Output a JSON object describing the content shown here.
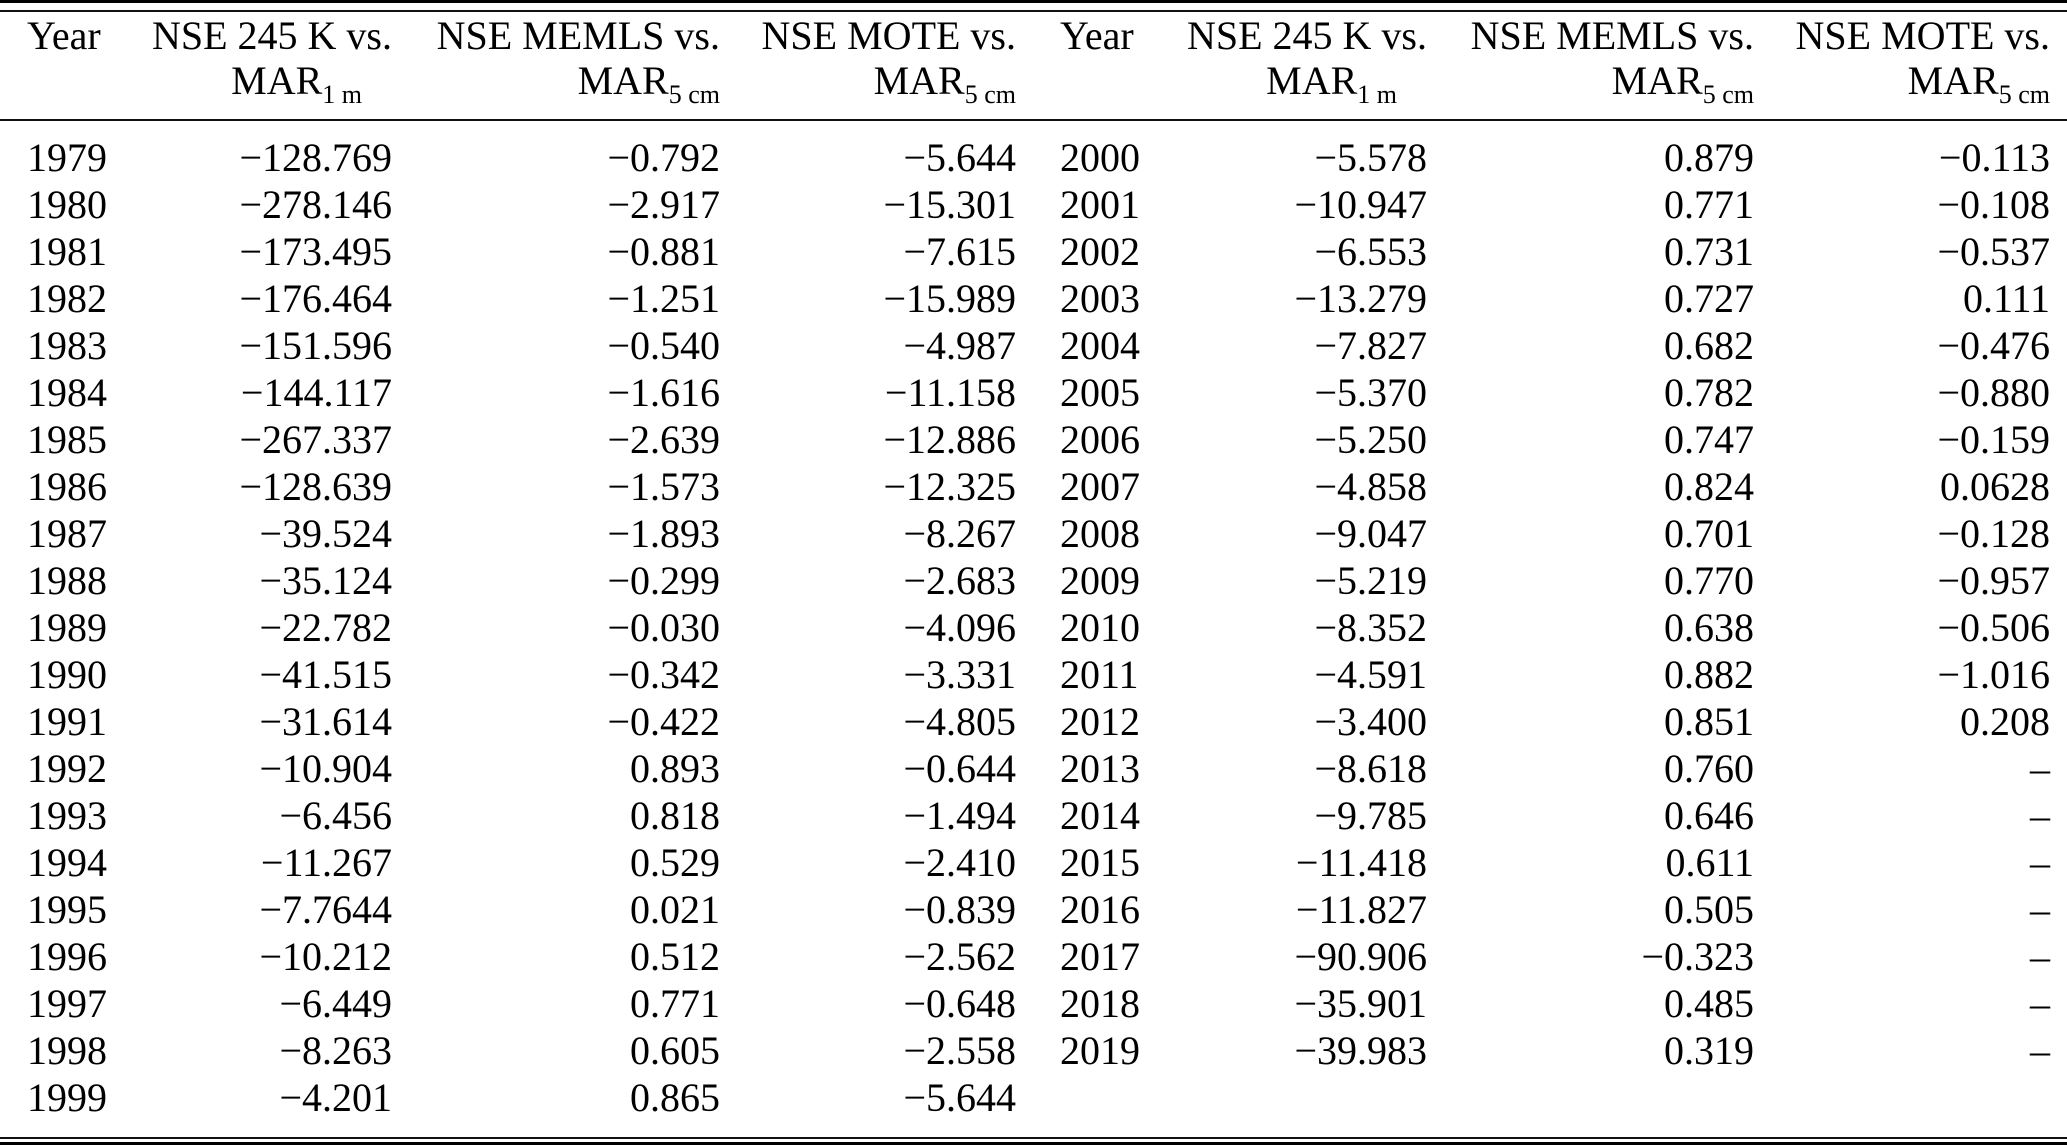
{
  "table": {
    "columns": [
      {
        "label": "Year"
      },
      {
        "line1": "NSE 245 K vs.",
        "line2_base": "MAR",
        "line2_sub": "1 m"
      },
      {
        "line1": "NSE MEMLS vs.",
        "line2_base": "MAR",
        "line2_sub": "5 cm"
      },
      {
        "line1": "NSE MOTE vs.",
        "line2_base": "MAR",
        "line2_sub": "5 cm"
      },
      {
        "label": "Year"
      },
      {
        "line1": "NSE 245 K vs.",
        "line2_base": "MAR",
        "line2_sub": "1 m"
      },
      {
        "line1": "NSE MEMLS vs.",
        "line2_base": "MAR",
        "line2_sub": "5 cm"
      },
      {
        "line1": "NSE MOTE vs.",
        "line2_base": "MAR",
        "line2_sub": "5 cm"
      }
    ],
    "missing_value_glyph": "–",
    "rows": [
      {
        "c0": "1979",
        "c1": "−128.769",
        "c2": "−0.792",
        "c3": "−5.644",
        "c4": "2000",
        "c5": "−5.578",
        "c6": "0.879",
        "c7": "−0.113"
      },
      {
        "c0": "1980",
        "c1": "−278.146",
        "c2": "−2.917",
        "c3": "−15.301",
        "c4": "2001",
        "c5": "−10.947",
        "c6": "0.771",
        "c7": "−0.108"
      },
      {
        "c0": "1981",
        "c1": "−173.495",
        "c2": "−0.881",
        "c3": "−7.615",
        "c4": "2002",
        "c5": "−6.553",
        "c6": "0.731",
        "c7": "−0.537"
      },
      {
        "c0": "1982",
        "c1": "−176.464",
        "c2": "−1.251",
        "c3": "−15.989",
        "c4": "2003",
        "c5": "−13.279",
        "c6": "0.727",
        "c7": "0.111"
      },
      {
        "c0": "1983",
        "c1": "−151.596",
        "c2": "−0.540",
        "c3": "−4.987",
        "c4": "2004",
        "c5": "−7.827",
        "c6": "0.682",
        "c7": "−0.476"
      },
      {
        "c0": "1984",
        "c1": "−144.117",
        "c2": "−1.616",
        "c3": "−11.158",
        "c4": "2005",
        "c5": "−5.370",
        "c6": "0.782",
        "c7": "−0.880"
      },
      {
        "c0": "1985",
        "c1": "−267.337",
        "c2": "−2.639",
        "c3": "−12.886",
        "c4": "2006",
        "c5": "−5.250",
        "c6": "0.747",
        "c7": "−0.159"
      },
      {
        "c0": "1986",
        "c1": "−128.639",
        "c2": "−1.573",
        "c3": "−12.325",
        "c4": "2007",
        "c5": "−4.858",
        "c6": "0.824",
        "c7": "0.0628"
      },
      {
        "c0": "1987",
        "c1": "−39.524",
        "c2": "−1.893",
        "c3": "−8.267",
        "c4": "2008",
        "c5": "−9.047",
        "c6": "0.701",
        "c7": "−0.128"
      },
      {
        "c0": "1988",
        "c1": "−35.124",
        "c2": "−0.299",
        "c3": "−2.683",
        "c4": "2009",
        "c5": "−5.219",
        "c6": "0.770",
        "c7": "−0.957"
      },
      {
        "c0": "1989",
        "c1": "−22.782",
        "c2": "−0.030",
        "c3": "−4.096",
        "c4": "2010",
        "c5": "−8.352",
        "c6": "0.638",
        "c7": "−0.506"
      },
      {
        "c0": "1990",
        "c1": "−41.515",
        "c2": "−0.342",
        "c3": "−3.331",
        "c4": "2011",
        "c5": "−4.591",
        "c6": "0.882",
        "c7": "−1.016"
      },
      {
        "c0": "1991",
        "c1": "−31.614",
        "c2": "−0.422",
        "c3": "−4.805",
        "c4": "2012",
        "c5": "−3.400",
        "c6": "0.851",
        "c7": "0.208"
      },
      {
        "c0": "1992",
        "c1": "−10.904",
        "c2": "0.893",
        "c3": "−0.644",
        "c4": "2013",
        "c5": "−8.618",
        "c6": "0.760",
        "c7": "–"
      },
      {
        "c0": "1993",
        "c1": "−6.456",
        "c2": "0.818",
        "c3": "−1.494",
        "c4": "2014",
        "c5": "−9.785",
        "c6": "0.646",
        "c7": "–"
      },
      {
        "c0": "1994",
        "c1": "−11.267",
        "c2": "0.529",
        "c3": "−2.410",
        "c4": "2015",
        "c5": "−11.418",
        "c6": "0.611",
        "c7": "–"
      },
      {
        "c0": "1995",
        "c1": "−7.7644",
        "c2": "0.021",
        "c3": "−0.839",
        "c4": "2016",
        "c5": "−11.827",
        "c6": "0.505",
        "c7": "–"
      },
      {
        "c0": "1996",
        "c1": "−10.212",
        "c2": "0.512",
        "c3": "−2.562",
        "c4": "2017",
        "c5": "−90.906",
        "c6": "−0.323",
        "c7": "–"
      },
      {
        "c0": "1997",
        "c1": "−6.449",
        "c2": "0.771",
        "c3": "−0.648",
        "c4": "2018",
        "c5": "−35.901",
        "c6": "0.485",
        "c7": "–"
      },
      {
        "c0": "1998",
        "c1": "−8.263",
        "c2": "0.605",
        "c3": "−2.558",
        "c4": "2019",
        "c5": "−39.983",
        "c6": "0.319",
        "c7": "–"
      },
      {
        "c0": "1999",
        "c1": "−4.201",
        "c2": "0.865",
        "c3": "−5.644",
        "c4": "",
        "c5": "",
        "c6": "",
        "c7": ""
      }
    ]
  }
}
